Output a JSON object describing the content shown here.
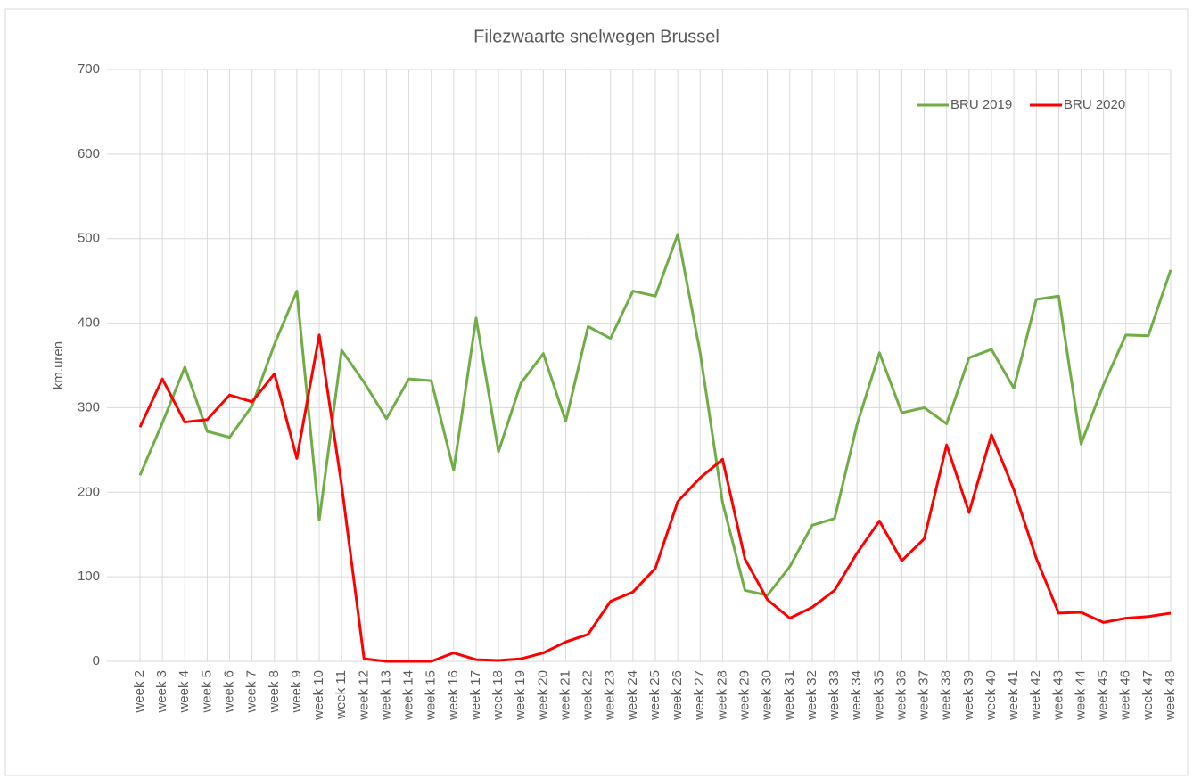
{
  "chart_data": {
    "type": "line",
    "title": "Filezwaarte snelwegen Brussel",
    "y_label": "km.uren",
    "categories": [
      "week 2",
      "week 3",
      "week 4",
      "week 5",
      "week 6",
      "week 7",
      "week 8",
      "week 9",
      "week 10",
      "week 11",
      "week 12",
      "week 13",
      "week 14",
      "week 15",
      "week 16",
      "week 17",
      "week 18",
      "week 19",
      "week 20",
      "week 21",
      "week 22",
      "week 23",
      "week 24",
      "week 25",
      "week 26",
      "week 27",
      "week 28",
      "week 29",
      "week 30",
      "week 31",
      "week 32",
      "week 33",
      "week 34",
      "week 35",
      "week 36",
      "week 37",
      "week 38",
      "week 39",
      "week 40",
      "week 41",
      "week 42",
      "week 43",
      "week 44",
      "week 45",
      "week 46",
      "week 47",
      "week 48"
    ],
    "series": [
      {
        "name": "BRU 2019",
        "color": "#70ad47",
        "values": [
          220,
          282,
          348,
          272,
          265,
          302,
          375,
          438,
          167,
          368,
          330,
          287,
          334,
          332,
          226,
          406,
          248,
          329,
          364,
          284,
          396,
          382,
          438,
          432,
          505,
          365,
          188,
          84,
          78,
          112,
          161,
          169,
          280,
          365,
          294,
          300,
          281,
          359,
          369,
          323,
          428,
          432,
          257,
          327,
          386,
          385,
          463
        ]
      },
      {
        "name": "BRU 2020",
        "color": "#ff0000",
        "values": [
          277,
          334,
          283,
          286,
          315,
          307,
          340,
          240,
          386,
          208,
          3,
          0,
          0,
          0,
          10,
          2,
          1,
          3,
          10,
          23,
          32,
          71,
          82,
          110,
          189,
          217,
          239,
          121,
          73,
          51,
          64,
          84,
          128,
          166,
          119,
          145,
          256,
          176,
          268,
          203,
          122,
          57,
          58,
          46,
          51,
          53,
          57
        ]
      }
    ],
    "ylim": [
      0,
      700
    ],
    "yticks": [
      0,
      100,
      200,
      300,
      400,
      500,
      600,
      700
    ],
    "grid": true,
    "legend": "top-right"
  }
}
